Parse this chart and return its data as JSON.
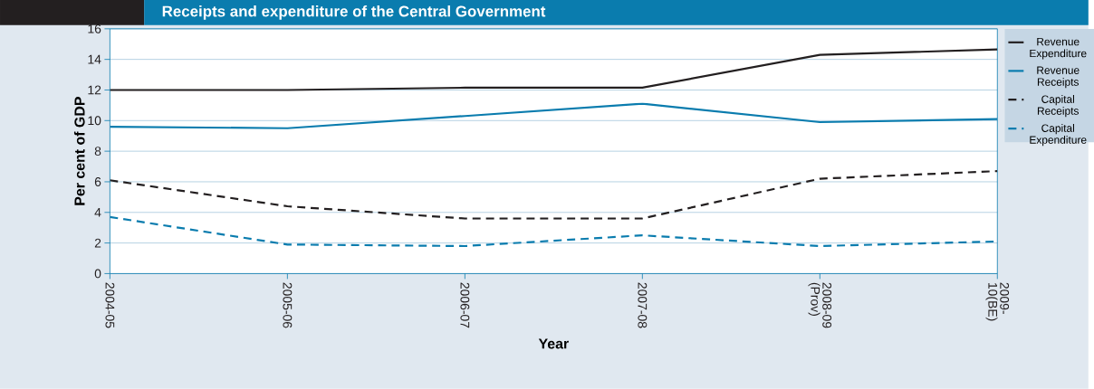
{
  "chart_data": {
    "type": "line",
    "title": "Receipts and expenditure of the Central Government",
    "xlabel": "Year",
    "ylabel": "Per cent of GDP",
    "categories": [
      "2004-05",
      "2005-06",
      "2006-07",
      "2007-08",
      "2008-09 (Prov)",
      "2009-10(BE)"
    ],
    "ylim": [
      0,
      16
    ],
    "yticks": [
      0,
      2,
      4,
      6,
      8,
      10,
      12,
      14,
      16
    ],
    "grid": "y",
    "legend": "right",
    "series": [
      {
        "name": "Revenue Expenditure",
        "color": "#231f20",
        "line_style": "solid",
        "values": [
          12.0,
          12.0,
          12.15,
          12.15,
          14.3,
          14.65
        ]
      },
      {
        "name": "Revenue Receipts",
        "color": "#0a7cae",
        "line_style": "solid",
        "values": [
          9.6,
          9.5,
          10.3,
          11.1,
          9.9,
          10.1
        ]
      },
      {
        "name": "Capital Receipts",
        "color": "#231f20",
        "line_style": "dashed",
        "values": [
          6.1,
          4.4,
          3.6,
          3.6,
          6.2,
          6.7
        ]
      },
      {
        "name": "Capital Expenditure",
        "color": "#0a7cae",
        "line_style": "dashed",
        "values": [
          3.7,
          1.9,
          1.8,
          2.5,
          1.8,
          2.1
        ]
      }
    ]
  }
}
